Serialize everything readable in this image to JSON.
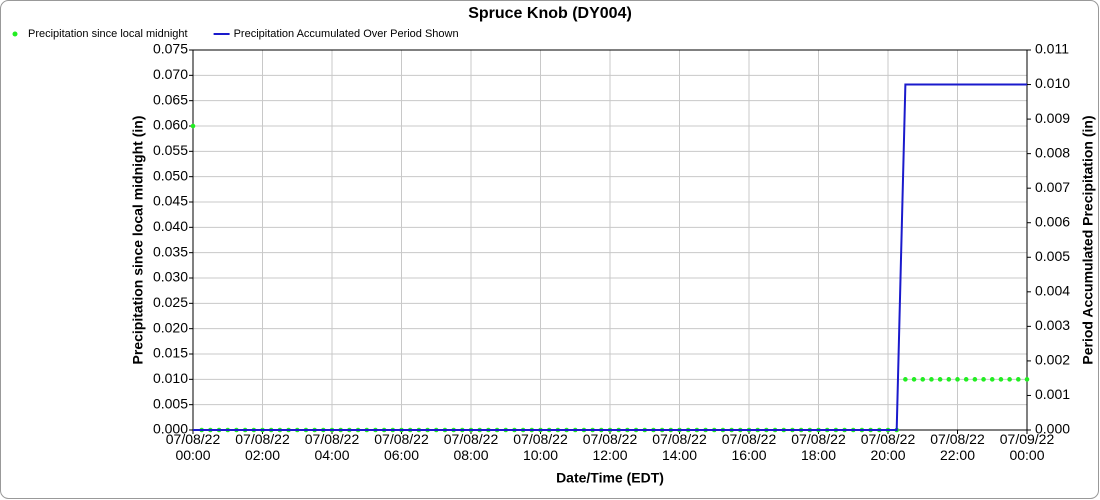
{
  "chart_data": {
    "type": "line",
    "title": "Spruce Knob (DY004)",
    "xlabel": "Date/Time (EDT)",
    "ylabel": "Precipitation since local midnight (in)",
    "y2label": "Period Accumulated Precipitation (in)",
    "legend": "top-left",
    "grid": true,
    "xlim": [
      0,
      24
    ],
    "xticks": [
      {
        "value": 0,
        "label": "07/08/22 00:00"
      },
      {
        "value": 2,
        "label": "07/08/22 02:00"
      },
      {
        "value": 4,
        "label": "07/08/22 04:00"
      },
      {
        "value": 6,
        "label": "07/08/22 06:00"
      },
      {
        "value": 8,
        "label": "07/08/22 08:00"
      },
      {
        "value": 10,
        "label": "07/08/22 10:00"
      },
      {
        "value": 12,
        "label": "07/08/22 12:00"
      },
      {
        "value": 14,
        "label": "07/08/22 14:00"
      },
      {
        "value": 16,
        "label": "07/08/22 16:00"
      },
      {
        "value": 18,
        "label": "07/08/22 18:00"
      },
      {
        "value": 20,
        "label": "07/08/22 20:00"
      },
      {
        "value": 22,
        "label": "07/08/22 22:00"
      },
      {
        "value": 24,
        "label": "07/09/22 00:00"
      }
    ],
    "ylim": [
      0,
      0.075
    ],
    "yticks": [
      {
        "value": 0,
        "label": "0.000"
      },
      {
        "value": 0.005,
        "label": "0.005"
      },
      {
        "value": 0.01,
        "label": "0.010"
      },
      {
        "value": 0.015,
        "label": "0.015"
      },
      {
        "value": 0.02,
        "label": "0.020"
      },
      {
        "value": 0.025,
        "label": "0.025"
      },
      {
        "value": 0.03,
        "label": "0.030"
      },
      {
        "value": 0.035,
        "label": "0.035"
      },
      {
        "value": 0.04,
        "label": "0.040"
      },
      {
        "value": 0.045,
        "label": "0.045"
      },
      {
        "value": 0.05,
        "label": "0.050"
      },
      {
        "value": 0.055,
        "label": "0.055"
      },
      {
        "value": 0.06,
        "label": "0.060"
      },
      {
        "value": 0.065,
        "label": "0.065"
      },
      {
        "value": 0.07,
        "label": "0.070"
      },
      {
        "value": 0.075,
        "label": "0.075"
      }
    ],
    "y2lim": [
      0,
      0.011
    ],
    "y2ticks": [
      {
        "value": 0,
        "label": "0.000"
      },
      {
        "value": 0.001,
        "label": "0.001"
      },
      {
        "value": 0.002,
        "label": "0.002"
      },
      {
        "value": 0.003,
        "label": "0.003"
      },
      {
        "value": 0.004,
        "label": "0.004"
      },
      {
        "value": 0.005,
        "label": "0.005"
      },
      {
        "value": 0.006,
        "label": "0.006"
      },
      {
        "value": 0.007,
        "label": "0.007"
      },
      {
        "value": 0.008,
        "label": "0.008"
      },
      {
        "value": 0.009,
        "label": "0.009"
      },
      {
        "value": 0.01,
        "label": "0.010"
      },
      {
        "value": 0.011,
        "label": "0.011"
      }
    ],
    "x": [
      0,
      0.25,
      0.5,
      0.75,
      1,
      1.25,
      1.5,
      1.75,
      2,
      2.25,
      2.5,
      2.75,
      3,
      3.25,
      3.5,
      3.75,
      4,
      4.25,
      4.5,
      4.75,
      5,
      5.25,
      5.5,
      5.75,
      6,
      6.25,
      6.5,
      6.75,
      7,
      7.25,
      7.5,
      7.75,
      8,
      8.25,
      8.5,
      8.75,
      9,
      9.25,
      9.5,
      9.75,
      10,
      10.25,
      10.5,
      10.75,
      11,
      11.25,
      11.5,
      11.75,
      12,
      12.25,
      12.5,
      12.75,
      13,
      13.25,
      13.5,
      13.75,
      14,
      14.25,
      14.5,
      14.75,
      15,
      15.25,
      15.5,
      15.75,
      16,
      16.25,
      16.5,
      16.75,
      17,
      17.25,
      17.5,
      17.75,
      18,
      18.25,
      18.5,
      18.75,
      19,
      19.25,
      19.5,
      19.75,
      20,
      20.25,
      20.5,
      20.75,
      21,
      21.25,
      21.5,
      21.75,
      22,
      22.25,
      22.5,
      22.75,
      23,
      23.25,
      23.5,
      23.75,
      24
    ],
    "series": [
      {
        "name": "Precipitation since local midnight",
        "color": "#22ee22",
        "style": "markers",
        "axis": "y",
        "values": [
          0.06,
          0,
          0,
          0,
          0,
          0,
          0,
          0,
          0,
          0,
          0,
          0,
          0,
          0,
          0,
          0,
          0,
          0,
          0,
          0,
          0,
          0,
          0,
          0,
          0,
          0,
          0,
          0,
          0,
          0,
          0,
          0,
          0,
          0,
          0,
          0,
          0,
          0,
          0,
          0,
          0,
          0,
          0,
          0,
          0,
          0,
          0,
          0,
          0,
          0,
          0,
          0,
          0,
          0,
          0,
          0,
          0,
          0,
          0,
          0,
          0,
          0,
          0,
          0,
          0,
          0,
          0,
          0,
          0,
          0,
          0,
          0,
          0,
          0,
          0,
          0,
          0,
          0,
          0,
          0,
          0,
          0,
          0.01,
          0.01,
          0.01,
          0.01,
          0.01,
          0.01,
          0.01,
          0.01,
          0.01,
          0.01,
          0.01,
          0.01,
          0.01,
          0.01,
          0.01
        ]
      },
      {
        "name": "Precipitation Accumulated Over Period Shown",
        "color": "#1a1acc",
        "style": "line",
        "axis": "y2",
        "values": [
          0,
          0,
          0,
          0,
          0,
          0,
          0,
          0,
          0,
          0,
          0,
          0,
          0,
          0,
          0,
          0,
          0,
          0,
          0,
          0,
          0,
          0,
          0,
          0,
          0,
          0,
          0,
          0,
          0,
          0,
          0,
          0,
          0,
          0,
          0,
          0,
          0,
          0,
          0,
          0,
          0,
          0,
          0,
          0,
          0,
          0,
          0,
          0,
          0,
          0,
          0,
          0,
          0,
          0,
          0,
          0,
          0,
          0,
          0,
          0,
          0,
          0,
          0,
          0,
          0,
          0,
          0,
          0,
          0,
          0,
          0,
          0,
          0,
          0,
          0,
          0,
          0,
          0,
          0,
          0,
          0,
          0,
          0.01,
          0.01,
          0.01,
          0.01,
          0.01,
          0.01,
          0.01,
          0.01,
          0.01,
          0.01,
          0.01,
          0.01,
          0.01,
          0.01,
          0.01
        ]
      }
    ]
  }
}
